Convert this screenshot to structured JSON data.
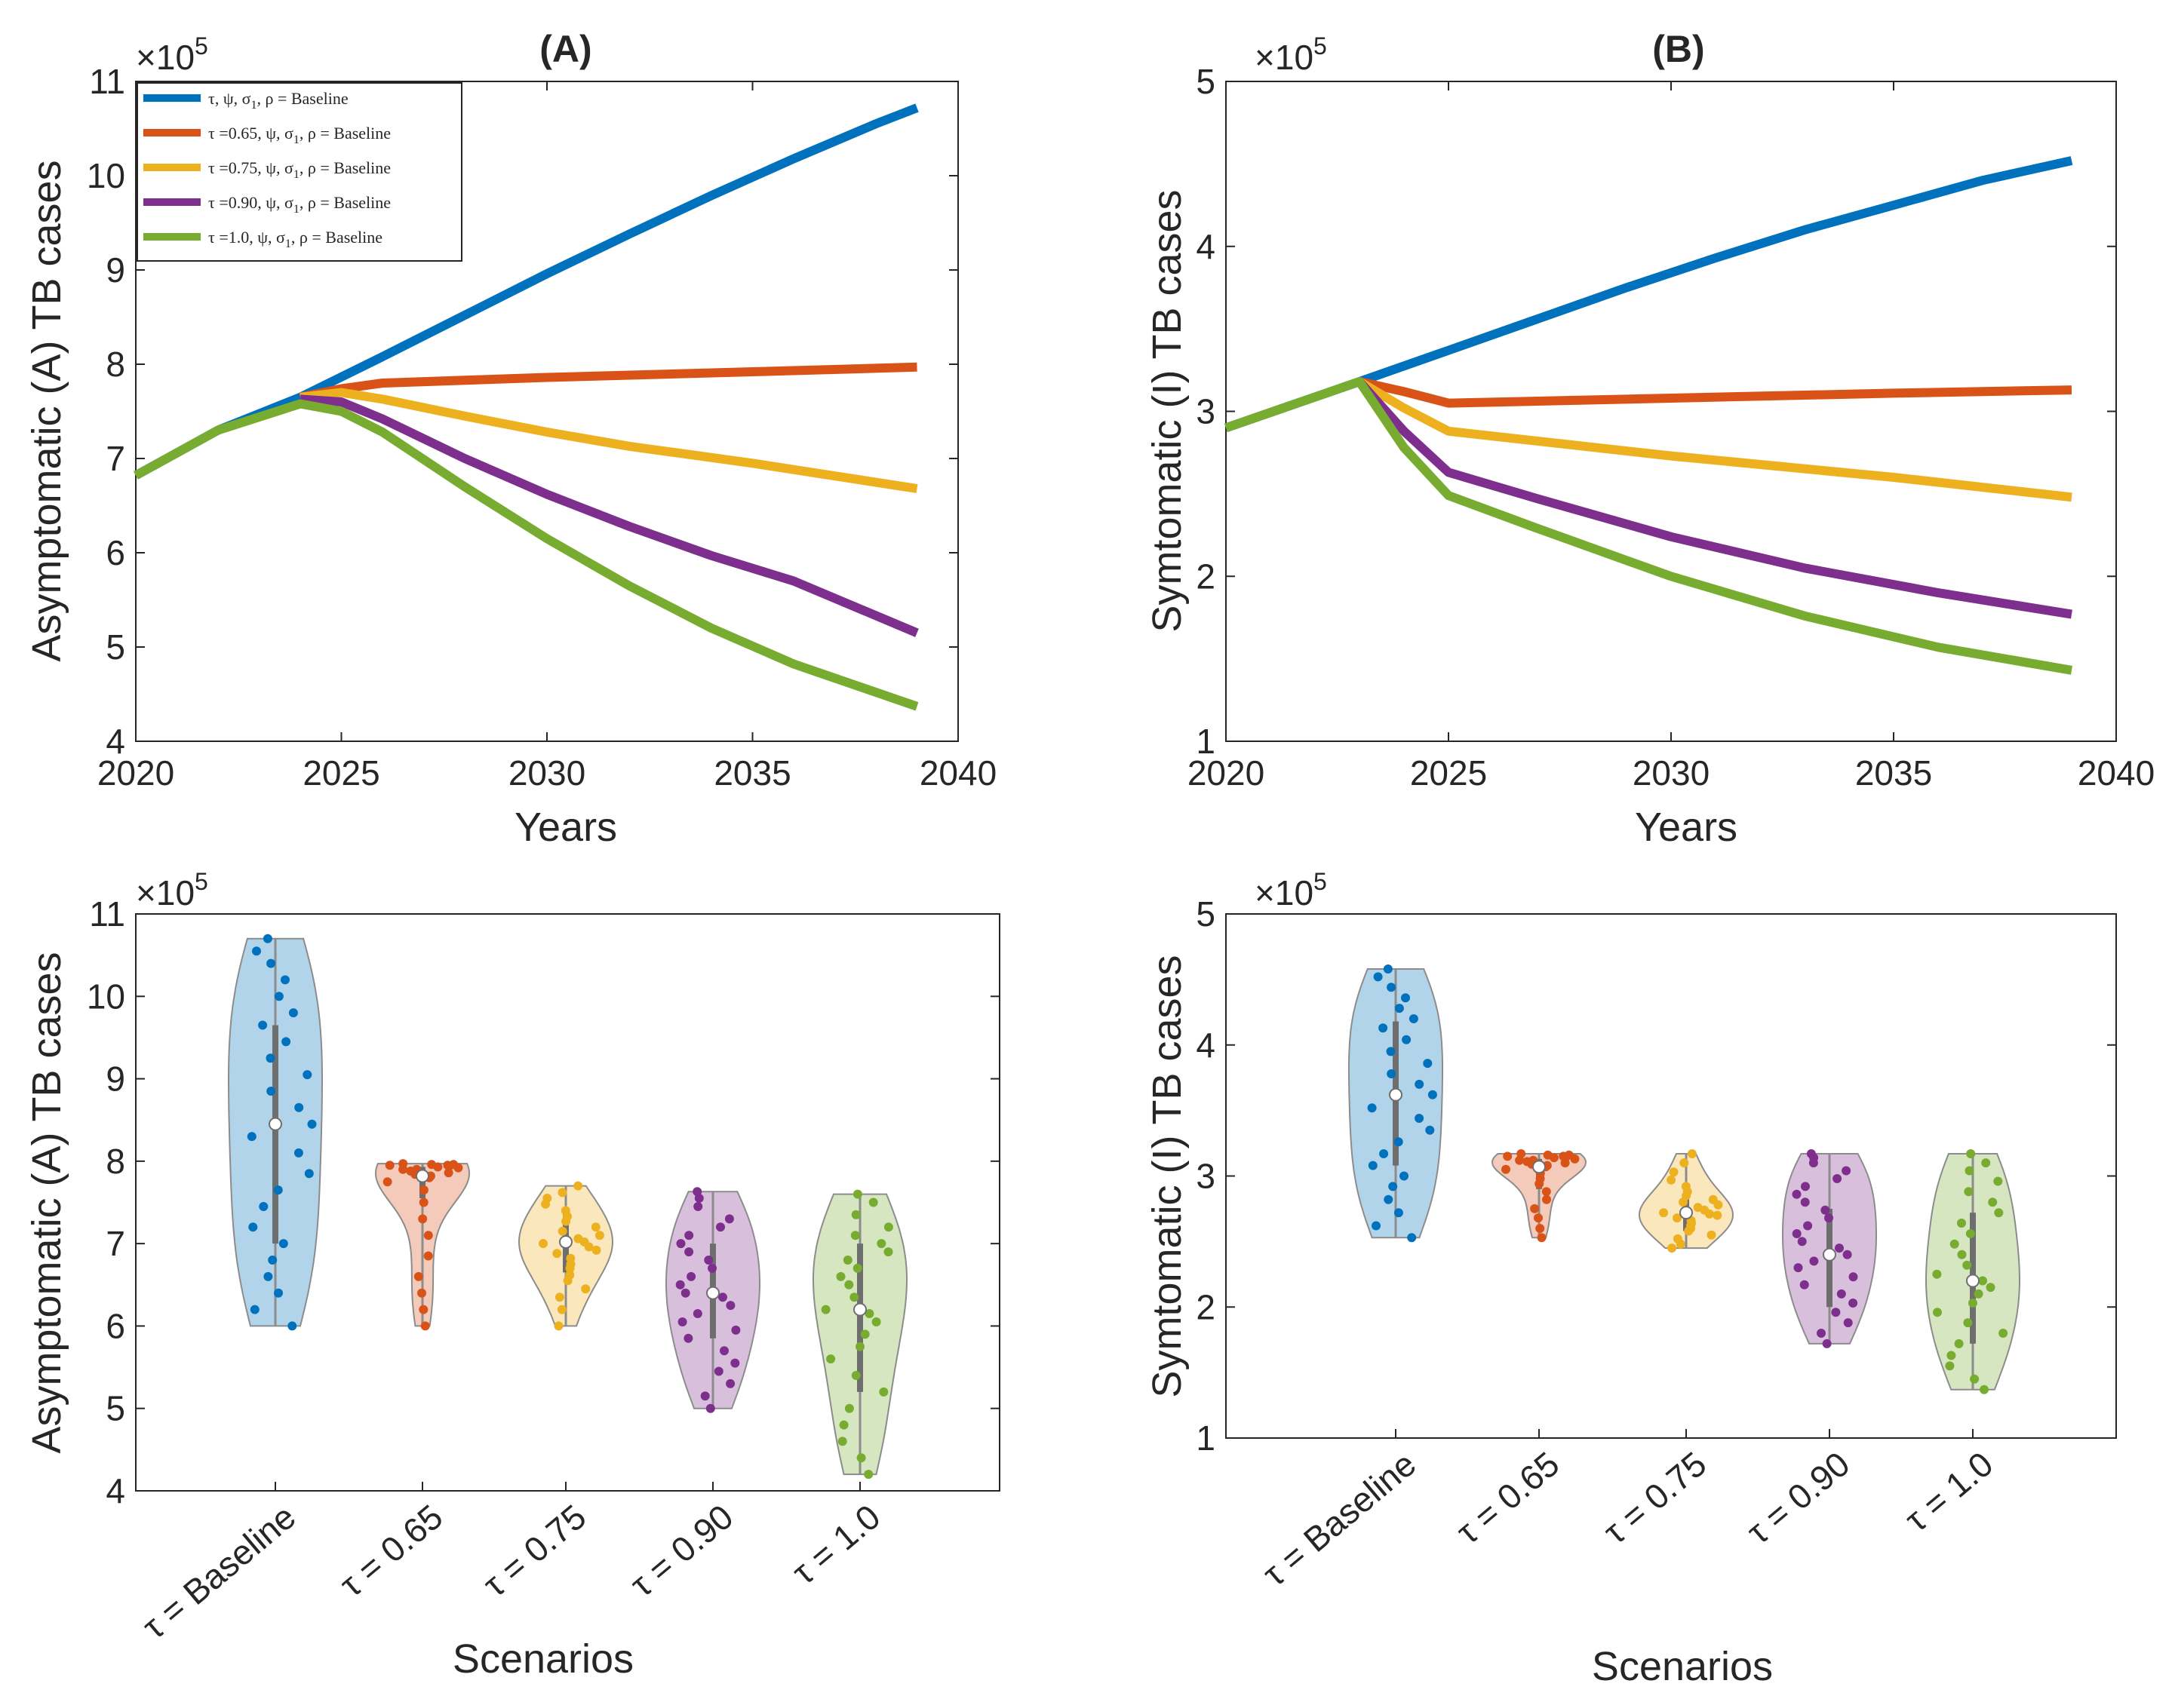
{
  "chart_data": [
    {
      "id": "A",
      "type": "line",
      "title": "(A)",
      "xlabel": "Years",
      "ylabel": "Asymptomatic (A) TB cases",
      "exponent_base": "×10",
      "exponent_power": "5",
      "xlim": [
        2020,
        2040
      ],
      "ylim": [
        4,
        11
      ],
      "xticks": [
        2020,
        2025,
        2030,
        2035,
        2040
      ],
      "yticks": [
        4,
        5,
        6,
        7,
        8,
        9,
        10,
        11
      ],
      "legend": "top-left",
      "series": [
        {
          "name": "τ, ψ, σ1, ρ = Baseline",
          "color": "#0072BD",
          "x": [
            2020,
            2022,
            2024,
            2026,
            2028,
            2030,
            2032,
            2034,
            2036,
            2038,
            2039
          ],
          "y": [
            6.82,
            7.3,
            7.65,
            8.08,
            8.52,
            8.96,
            9.38,
            9.79,
            10.18,
            10.55,
            10.72
          ]
        },
        {
          "name": "τ =0.65, ψ, σ1, ρ = Baseline",
          "color": "#D95319",
          "x": [
            2024,
            2025,
            2026,
            2030,
            2035,
            2039
          ],
          "y": [
            7.65,
            7.74,
            7.8,
            7.86,
            7.92,
            7.97
          ]
        },
        {
          "name": "τ =0.75, ψ, σ1, ρ = Baseline",
          "color": "#EDB120",
          "x": [
            2024,
            2025,
            2026,
            2028,
            2030,
            2032,
            2035,
            2039
          ],
          "y": [
            7.65,
            7.7,
            7.63,
            7.45,
            7.28,
            7.13,
            6.95,
            6.68
          ]
        },
        {
          "name": "τ =0.90, ψ, σ1, ρ = Baseline",
          "color": "#7E2F8E",
          "x": [
            2024,
            2025,
            2026,
            2028,
            2030,
            2032,
            2034,
            2036,
            2039
          ],
          "y": [
            7.63,
            7.6,
            7.42,
            7.0,
            6.62,
            6.28,
            5.97,
            5.7,
            5.15
          ]
        },
        {
          "name": "τ =1.0, ψ, σ1, ρ = Baseline",
          "color": "#77AC30",
          "x": [
            2020,
            2022,
            2024,
            2025,
            2026,
            2028,
            2030,
            2032,
            2034,
            2036,
            2039
          ],
          "y": [
            6.82,
            7.3,
            7.58,
            7.5,
            7.28,
            6.7,
            6.15,
            5.65,
            5.2,
            4.82,
            4.37
          ]
        }
      ]
    },
    {
      "id": "B",
      "type": "line",
      "title": "(B)",
      "xlabel": "Years",
      "ylabel": "Symtomatic (I) TB cases",
      "exponent_base": "×10",
      "exponent_power": "5",
      "xlim": [
        2020,
        2040
      ],
      "ylim": [
        1,
        5
      ],
      "xticks": [
        2020,
        2025,
        2030,
        2035,
        2040
      ],
      "yticks": [
        1,
        2,
        3,
        4,
        5
      ],
      "series": [
        {
          "name": "Baseline",
          "color": "#0072BD",
          "x": [
            2020,
            2023,
            2025,
            2027,
            2029,
            2031,
            2033,
            2035,
            2037,
            2039
          ],
          "y": [
            2.9,
            3.18,
            3.37,
            3.56,
            3.75,
            3.93,
            4.1,
            4.25,
            4.4,
            4.52
          ]
        },
        {
          "name": "τ =0.65",
          "color": "#D95319",
          "x": [
            2023,
            2024,
            2025,
            2030,
            2035,
            2039
          ],
          "y": [
            3.18,
            3.12,
            3.05,
            3.08,
            3.11,
            3.13
          ]
        },
        {
          "name": "τ =0.75",
          "color": "#EDB120",
          "x": [
            2023,
            2024,
            2025,
            2030,
            2035,
            2039
          ],
          "y": [
            3.18,
            3.02,
            2.88,
            2.73,
            2.6,
            2.48
          ]
        },
        {
          "name": "τ =0.90",
          "color": "#7E2F8E",
          "x": [
            2023,
            2024,
            2025,
            2027,
            2030,
            2033,
            2036,
            2039
          ],
          "y": [
            3.18,
            2.88,
            2.63,
            2.47,
            2.24,
            2.05,
            1.9,
            1.77
          ]
        },
        {
          "name": "τ =1.0",
          "color": "#77AC30",
          "x": [
            2020,
            2023,
            2024,
            2025,
            2027,
            2030,
            2033,
            2036,
            2039
          ],
          "y": [
            2.9,
            3.18,
            2.78,
            2.49,
            2.29,
            2.0,
            1.76,
            1.57,
            1.43
          ]
        }
      ]
    },
    {
      "id": "C",
      "type": "violin",
      "xlabel": "Scenarios",
      "ylabel": "Asymptomatic (A) TB cases",
      "exponent_base": "×10",
      "exponent_power": "5",
      "ylim": [
        4,
        11
      ],
      "yticks": [
        4,
        5,
        6,
        7,
        8,
        9,
        10,
        11
      ],
      "categories": [
        "τ = Baseline",
        "τ = 0.65",
        "τ = 0.75",
        "τ = 0.90",
        "τ = 1.0"
      ],
      "groups": [
        {
          "color": "#0072BD",
          "min": 6.0,
          "max": 10.7,
          "median": 8.45,
          "q1": 7.0,
          "q3": 9.65,
          "points": [
            6.0,
            6.2,
            6.4,
            6.6,
            6.8,
            7.0,
            7.2,
            7.45,
            7.65,
            7.85,
            8.1,
            8.3,
            8.45,
            8.65,
            8.85,
            9.05,
            9.25,
            9.45,
            9.65,
            9.8,
            10.0,
            10.2,
            10.4,
            10.55,
            10.7
          ]
        },
        {
          "color": "#D95319",
          "min": 6.0,
          "max": 7.97,
          "median": 7.82,
          "q1": 7.55,
          "q3": 7.93,
          "points": [
            6.0,
            6.2,
            6.4,
            6.6,
            6.85,
            7.1,
            7.3,
            7.5,
            7.65,
            7.75,
            7.8,
            7.82,
            7.84,
            7.86,
            7.88,
            7.9,
            7.9,
            7.92,
            7.93,
            7.94,
            7.95,
            7.95,
            7.96,
            7.96,
            7.97
          ]
        },
        {
          "color": "#EDB120",
          "min": 6.0,
          "max": 7.7,
          "median": 7.02,
          "q1": 6.65,
          "q3": 7.4,
          "points": [
            6.0,
            6.2,
            6.35,
            6.45,
            6.55,
            6.62,
            6.7,
            6.75,
            6.82,
            6.88,
            6.92,
            6.96,
            7.0,
            7.02,
            7.06,
            7.1,
            7.15,
            7.2,
            7.27,
            7.33,
            7.4,
            7.48,
            7.55,
            7.62,
            7.7
          ]
        },
        {
          "color": "#7E2F8E",
          "min": 5.0,
          "max": 7.63,
          "median": 6.4,
          "q1": 5.85,
          "q3": 7.0,
          "points": [
            5.0,
            5.15,
            5.3,
            5.45,
            5.55,
            5.7,
            5.85,
            5.95,
            6.05,
            6.15,
            6.25,
            6.35,
            6.4,
            6.5,
            6.6,
            6.7,
            6.8,
            6.9,
            7.0,
            7.1,
            7.2,
            7.3,
            7.45,
            7.55,
            7.63
          ]
        },
        {
          "color": "#77AC30",
          "min": 4.2,
          "max": 7.6,
          "median": 6.2,
          "q1": 5.2,
          "q3": 7.0,
          "points": [
            4.2,
            4.4,
            4.6,
            4.8,
            5.0,
            5.2,
            5.4,
            5.6,
            5.75,
            5.9,
            6.05,
            6.15,
            6.2,
            6.35,
            6.5,
            6.6,
            6.7,
            6.8,
            6.9,
            7.0,
            7.1,
            7.2,
            7.35,
            7.5,
            7.6
          ]
        }
      ]
    },
    {
      "id": "D",
      "type": "violin",
      "xlabel": "Scenarios",
      "ylabel": "Symtomatic (I) TB cases",
      "exponent_base": "×10",
      "exponent_power": "5",
      "ylim": [
        1,
        5
      ],
      "yticks": [
        1,
        2,
        3,
        4,
        5
      ],
      "categories": [
        "τ = Baseline",
        "τ = 0.65",
        "τ = 0.75",
        "τ = 0.90",
        "τ = 1.0"
      ],
      "groups": [
        {
          "color": "#0072BD",
          "min": 2.53,
          "max": 4.58,
          "median": 3.62,
          "q1": 3.08,
          "q3": 4.18,
          "points": [
            2.53,
            2.62,
            2.72,
            2.82,
            2.92,
            3.0,
            3.08,
            3.17,
            3.26,
            3.35,
            3.44,
            3.52,
            3.62,
            3.7,
            3.78,
            3.86,
            3.95,
            4.04,
            4.13,
            4.2,
            4.28,
            4.36,
            4.44,
            4.52,
            4.58
          ]
        },
        {
          "color": "#D95319",
          "min": 2.53,
          "max": 3.17,
          "median": 3.07,
          "q1": 2.9,
          "q3": 3.13,
          "points": [
            2.53,
            2.6,
            2.68,
            2.75,
            2.82,
            2.88,
            2.94,
            2.98,
            3.02,
            3.05,
            3.07,
            3.08,
            3.09,
            3.1,
            3.11,
            3.12,
            3.12,
            3.13,
            3.14,
            3.14,
            3.15,
            3.15,
            3.16,
            3.16,
            3.17
          ]
        },
        {
          "color": "#EDB120",
          "min": 2.45,
          "max": 3.17,
          "median": 2.72,
          "q1": 2.58,
          "q3": 2.85,
          "points": [
            2.45,
            2.48,
            2.52,
            2.55,
            2.58,
            2.6,
            2.62,
            2.64,
            2.66,
            2.68,
            2.7,
            2.71,
            2.72,
            2.74,
            2.76,
            2.78,
            2.8,
            2.82,
            2.85,
            2.88,
            2.92,
            2.97,
            3.03,
            3.1,
            3.17
          ]
        },
        {
          "color": "#7E2F8E",
          "min": 1.72,
          "max": 3.17,
          "median": 2.4,
          "q1": 2.0,
          "q3": 2.75,
          "points": [
            1.72,
            1.8,
            1.88,
            1.96,
            2.03,
            2.1,
            2.17,
            2.23,
            2.3,
            2.35,
            2.4,
            2.45,
            2.5,
            2.56,
            2.62,
            2.68,
            2.74,
            2.8,
            2.86,
            2.92,
            2.98,
            3.04,
            3.1,
            3.14,
            3.17
          ]
        },
        {
          "color": "#77AC30",
          "min": 1.37,
          "max": 3.17,
          "median": 2.2,
          "q1": 1.72,
          "q3": 2.72,
          "points": [
            1.37,
            1.45,
            1.55,
            1.63,
            1.72,
            1.8,
            1.88,
            1.96,
            2.03,
            2.1,
            2.15,
            2.2,
            2.25,
            2.32,
            2.4,
            2.48,
            2.56,
            2.64,
            2.72,
            2.8,
            2.88,
            2.96,
            3.04,
            3.1,
            3.17
          ]
        }
      ]
    }
  ]
}
